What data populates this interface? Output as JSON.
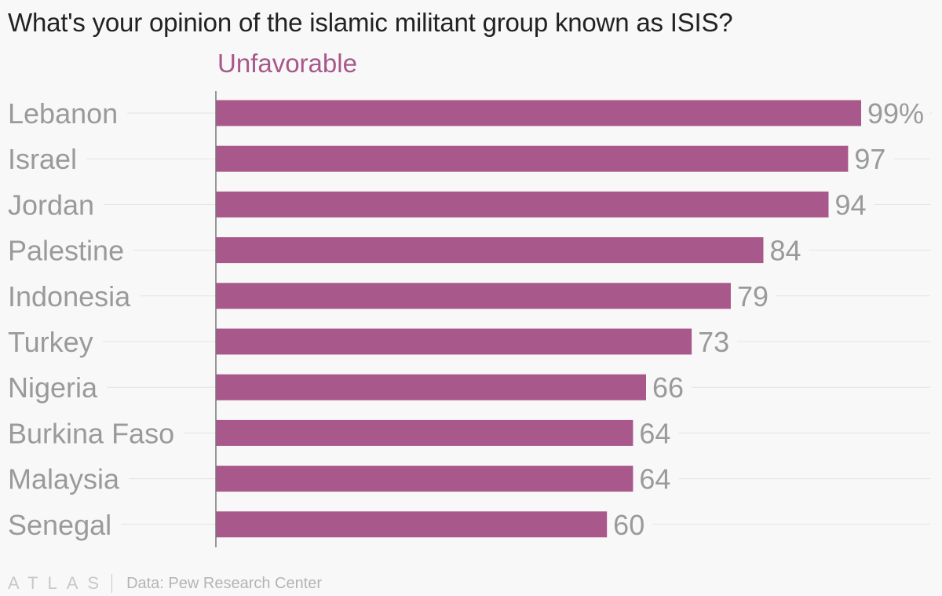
{
  "chart_data": {
    "type": "bar",
    "orientation": "horizontal",
    "title": "What's your opinion of the islamic militant group known as ISIS?",
    "series_label": "Unfavorable",
    "categories": [
      "Lebanon",
      "Israel",
      "Jordan",
      "Palestine",
      "Indonesia",
      "Turkey",
      "Nigeria",
      "Burkina Faso",
      "Malaysia",
      "Senegal"
    ],
    "values": [
      99,
      97,
      94,
      84,
      79,
      73,
      66,
      64,
      64,
      60
    ],
    "value_labels": [
      "99%",
      "97",
      "94",
      "84",
      "79",
      "73",
      "66",
      "64",
      "64",
      "60"
    ],
    "xlim": [
      0,
      99
    ],
    "unit": "%",
    "source": "Data: Pew Research Center",
    "logo": "ATLAS",
    "bar_color": "#a8588a",
    "label_color": "#9a9a9a",
    "gridline_color": "#e4e4e4"
  }
}
